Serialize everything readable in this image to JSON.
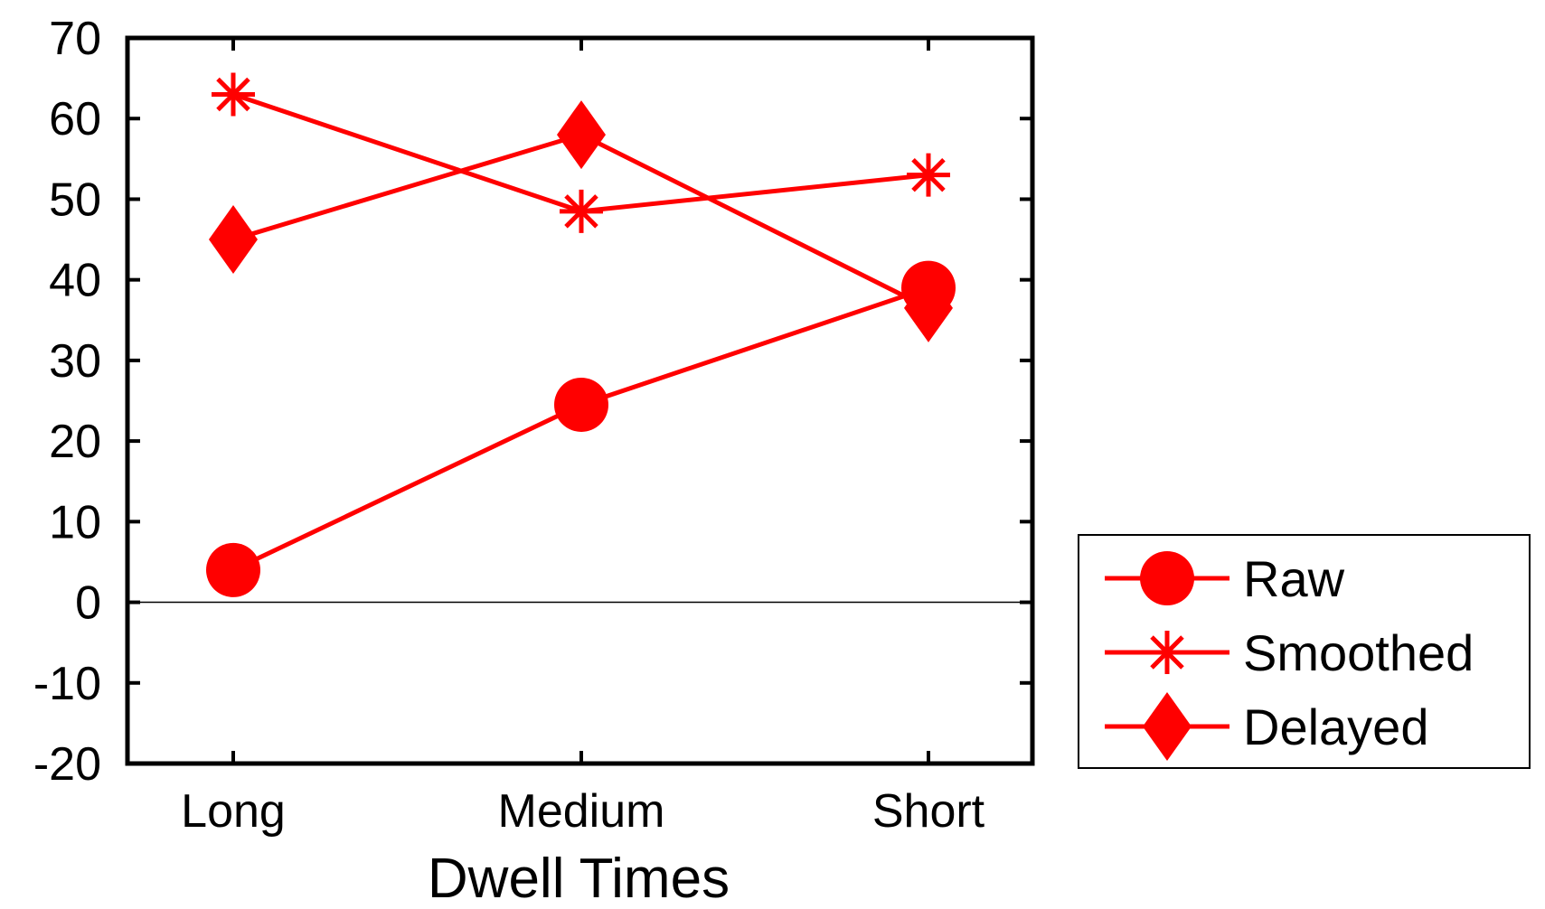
{
  "chart_data": {
    "type": "line",
    "title": "",
    "xlabel": "Dwell Times",
    "ylabel": "",
    "categories": [
      "Long",
      "Medium",
      "Short"
    ],
    "ylim": [
      -20,
      70
    ],
    "yticks": [
      "70",
      "60",
      "50",
      "40",
      "30",
      "20",
      "10",
      "0",
      "-10",
      "-20"
    ],
    "grid": false,
    "zero_line": true,
    "legend_position": "right",
    "series": [
      {
        "name": "Raw",
        "marker": "circle",
        "color": "#ff0000",
        "values": [
          4,
          24.5,
          39
        ]
      },
      {
        "name": "Smoothed",
        "marker": "asterisk",
        "color": "#ff0000",
        "values": [
          63,
          48.5,
          53
        ]
      },
      {
        "name": "Delayed",
        "marker": "diamond",
        "color": "#ff0000",
        "values": [
          45,
          58,
          36.5
        ]
      }
    ]
  }
}
